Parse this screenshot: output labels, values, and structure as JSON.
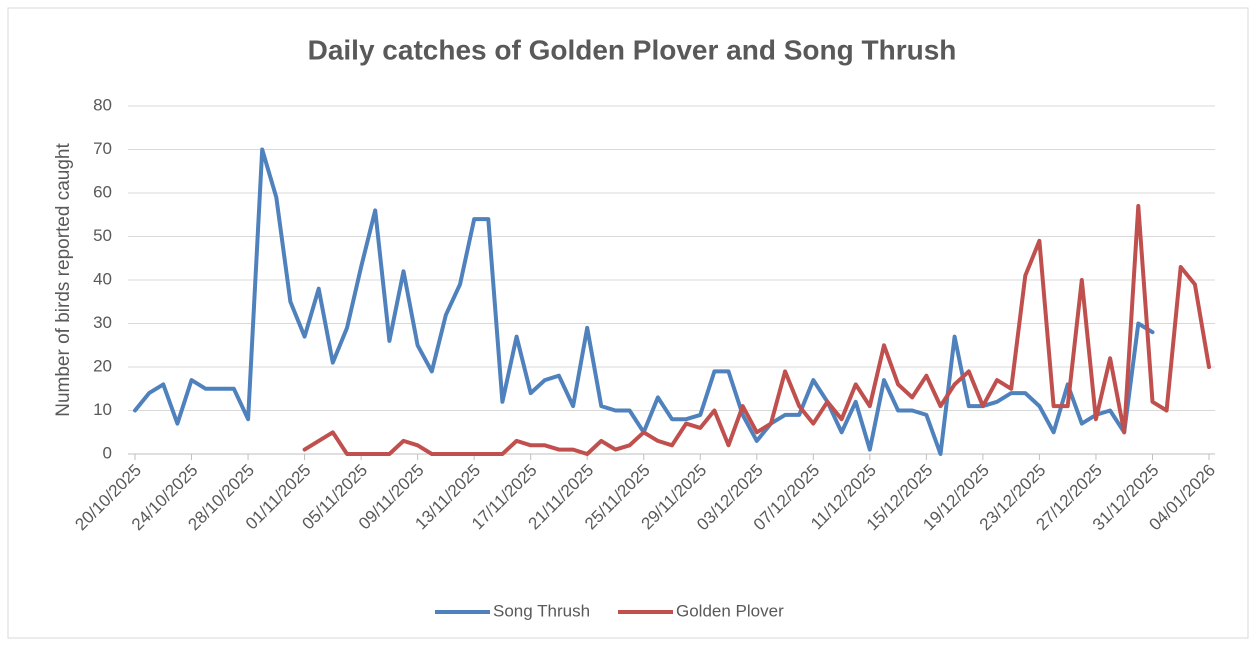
{
  "chart_data": {
    "type": "line",
    "title": "Daily catches of Golden Plover and Song Thrush",
    "y_label": "Number of birds reported caught",
    "categories": [
      "20/10/2025",
      null,
      null,
      null,
      "24/10/2025",
      null,
      null,
      null,
      "28/10/2025",
      null,
      null,
      null,
      "01/11/2025",
      null,
      null,
      null,
      "05/11/2025",
      null,
      null,
      null,
      "09/11/2025",
      null,
      null,
      null,
      "13/11/2025",
      null,
      null,
      null,
      "17/11/2025",
      null,
      null,
      null,
      "21/11/2025",
      null,
      null,
      null,
      "25/11/2025",
      null,
      null,
      null,
      "29/11/2025",
      null,
      null,
      null,
      "03/12/2025",
      null,
      null,
      null,
      "07/12/2025",
      null,
      null,
      null,
      "11/12/2025",
      null,
      null,
      null,
      "15/12/2025",
      null,
      null,
      null,
      "19/12/2025",
      null,
      null,
      null,
      "23/12/2025",
      null,
      null,
      null,
      "27/12/2025",
      null,
      null,
      null,
      "31/12/2025",
      null,
      null,
      null,
      "04/01/2026"
    ],
    "series": [
      {
        "name": "Song Thrush",
        "color": "#4f81bd",
        "values": [
          10,
          14,
          16,
          7,
          17,
          15,
          15,
          15,
          8,
          70,
          59,
          35,
          27,
          38,
          21,
          29,
          43,
          56,
          26,
          42,
          25,
          19,
          32,
          39,
          54,
          54,
          12,
          27,
          14,
          17,
          18,
          11,
          29,
          11,
          10,
          10,
          5,
          13,
          8,
          8,
          9,
          19,
          19,
          9,
          3,
          7,
          9,
          9,
          17,
          12,
          5,
          12,
          1,
          17,
          10,
          10,
          9,
          0,
          27,
          11,
          11,
          12,
          14,
          14,
          11,
          5,
          16,
          7,
          9,
          10,
          5,
          30,
          28,
          null,
          null,
          null,
          null
        ]
      },
      {
        "name": "Golden Plover",
        "color": "#c0504d",
        "values": [
          null,
          null,
          null,
          null,
          null,
          null,
          null,
          null,
          null,
          null,
          null,
          null,
          1,
          3,
          5,
          0,
          0,
          0,
          0,
          3,
          2,
          0,
          0,
          0,
          0,
          0,
          0,
          3,
          2,
          2,
          1,
          1,
          0,
          3,
          1,
          2,
          5,
          3,
          2,
          7,
          6,
          10,
          2,
          11,
          5,
          7,
          19,
          11,
          7,
          12,
          8,
          16,
          11,
          25,
          16,
          13,
          18,
          11,
          16,
          19,
          11,
          17,
          15,
          41,
          49,
          11,
          11,
          40,
          8,
          22,
          5,
          57,
          12,
          10,
          43,
          39,
          20
        ]
      }
    ],
    "ylim": [
      0,
      80
    ],
    "yticks": [
      0,
      10,
      20,
      30,
      40,
      50,
      60,
      70,
      80
    ],
    "grid": true,
    "legend": "bottom"
  }
}
